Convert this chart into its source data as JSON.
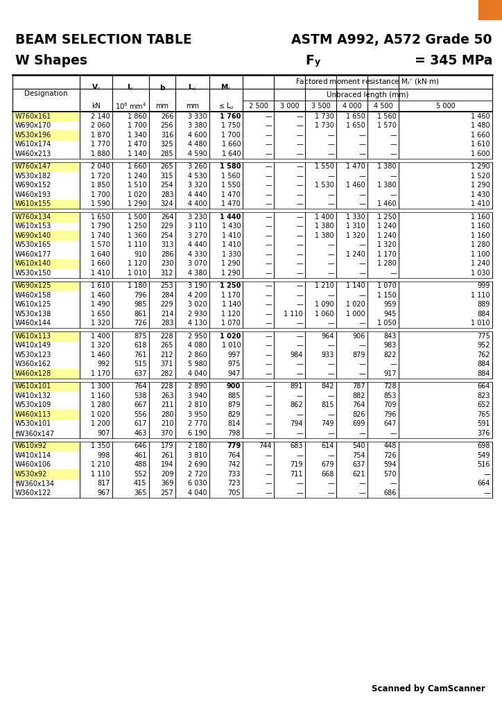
{
  "highlight_color": "#FFFF99",
  "background_color": "#FFFFFF",
  "groups": [
    {
      "rows": [
        [
          "W760x161",
          "2 140",
          "1 860",
          "266",
          "3 330",
          "1 760",
          "—",
          "—",
          "1 730",
          "1 650",
          "1 560",
          "1 460"
        ],
        [
          "W690x170",
          "2 060",
          "1 700",
          "256",
          "3 380",
          "1 750",
          "—",
          "—",
          "1 730",
          "1 650",
          "1 570",
          "1 480"
        ],
        [
          "W530x196",
          "1 870",
          "1 340",
          "316",
          "4 600",
          "1 700",
          "—",
          "—",
          "—",
          "—",
          "—",
          "1 660"
        ],
        [
          "W610x174",
          "1 770",
          "1 470",
          "325",
          "4 480",
          "1 660",
          "—",
          "—",
          "—",
          "—",
          "—",
          "1 610"
        ],
        [
          "W460x213",
          "1 880",
          "1 140",
          "285",
          "4 590",
          "1 640",
          "—",
          "—",
          "—",
          "—",
          "—",
          "1 600"
        ]
      ],
      "highlighted": [
        0,
        2
      ]
    },
    {
      "rows": [
        [
          "W760x147",
          "2 040",
          "1 660",
          "265",
          "3 260",
          "1 580",
          "—",
          "—",
          "1 550",
          "1 470",
          "1 380",
          "1 290"
        ],
        [
          "W530x182",
          "1 720",
          "1 240",
          "315",
          "4 530",
          "1 560",
          "—",
          "—",
          "—",
          "—",
          "—",
          "1 520"
        ],
        [
          "W690x152",
          "1 850",
          "1 510",
          "254",
          "3 320",
          "1 550",
          "—",
          "—",
          "1 530",
          "1 460",
          "1 380",
          "1 290"
        ],
        [
          "W460x193",
          "1 700",
          "1 020",
          "283",
          "4 440",
          "1 470",
          "—",
          "—",
          "—",
          "—",
          "—",
          "1 430"
        ],
        [
          "W610x155",
          "1 590",
          "1 290",
          "324",
          "4 400",
          "1 470",
          "—",
          "—",
          "—",
          "—",
          "1 460",
          "1 410"
        ]
      ],
      "highlighted": [
        0,
        4
      ]
    },
    {
      "rows": [
        [
          "W760x134",
          "1 650",
          "1 500",
          "264",
          "3 230",
          "1 440",
          "—",
          "—",
          "1 400",
          "1 330",
          "1 250",
          "1 160"
        ],
        [
          "W610x153",
          "1 790",
          "1 250",
          "229",
          "3 110",
          "1 430",
          "—",
          "—",
          "1 380",
          "1 310",
          "1 240",
          "1 160"
        ],
        [
          "W690x140",
          "1 740",
          "1 360",
          "254",
          "3 270",
          "1 410",
          "—",
          "—",
          "1 380",
          "1 320",
          "1 240",
          "1 160"
        ],
        [
          "W530x165",
          "1 570",
          "1 110",
          "313",
          "4 440",
          "1 410",
          "—",
          "—",
          "—",
          "—",
          "1 320",
          "1 280"
        ],
        [
          "W460x177",
          "1 640",
          "910",
          "286",
          "4 330",
          "1 330",
          "—",
          "—",
          "—",
          "1 240",
          "1 170",
          "1 100"
        ],
        [
          "W610x140",
          "1 660",
          "1 120",
          "230",
          "3 070",
          "1 290",
          "—",
          "—",
          "—",
          "—",
          "1 280",
          "1 240"
        ],
        [
          "W530x150",
          "1 410",
          "1 010",
          "312",
          "4 380",
          "1 290",
          "—",
          "—",
          "—",
          "—",
          "—",
          "1 030"
        ]
      ],
      "highlighted": [
        0,
        2,
        5
      ]
    },
    {
      "rows": [
        [
          "W690x125",
          "1 610",
          "1 180",
          "253",
          "3 190",
          "1 250",
          "—",
          "—",
          "1 210",
          "1 140",
          "1 070",
          "999"
        ],
        [
          "W460x158",
          "1 460",
          "796",
          "284",
          "4 200",
          "1 170",
          "—",
          "—",
          "—",
          "—",
          "1 150",
          "1 110"
        ],
        [
          "W610x125",
          "1 490",
          "985",
          "229",
          "3 020",
          "1 140",
          "—",
          "—",
          "1 090",
          "1 020",
          "959",
          "889"
        ],
        [
          "W530x138",
          "1 650",
          "861",
          "214",
          "2 930",
          "1 120",
          "—",
          "1 110",
          "1 060",
          "1 000",
          "945",
          "884"
        ],
        [
          "W460x144",
          "1 320",
          "726",
          "283",
          "4 130",
          "1 070",
          "—",
          "—",
          "—",
          "—",
          "1 050",
          "1 010"
        ]
      ],
      "highlighted": [
        0
      ]
    },
    {
      "rows": [
        [
          "W610x113",
          "1 400",
          "875",
          "228",
          "2 950",
          "1 020",
          "—",
          "—",
          "964",
          "906",
          "843",
          "775"
        ],
        [
          "W410x149",
          "1 320",
          "618",
          "265",
          "4 080",
          "1 010",
          "—",
          "—",
          "—",
          "—",
          "983",
          "952"
        ],
        [
          "W530x123",
          "1 460",
          "761",
          "212",
          "2 860",
          "997",
          "—",
          "984",
          "933",
          "879",
          "822",
          "762"
        ],
        [
          "W360x162",
          "992",
          "515",
          "371",
          "5 980",
          "975",
          "—",
          "—",
          "—",
          "—",
          "—",
          "884"
        ],
        [
          "W460x128",
          "1 170",
          "637",
          "282",
          "4 040",
          "947",
          "—",
          "—",
          "—",
          "—",
          "917",
          "884"
        ]
      ],
      "highlighted": [
        0,
        4
      ]
    },
    {
      "rows": [
        [
          "W610x101",
          "1 300",
          "764",
          "228",
          "2 890",
          "900",
          "—",
          "891",
          "842",
          "787",
          "728",
          "664"
        ],
        [
          "W410x132",
          "1 160",
          "538",
          "263",
          "3 940",
          "885",
          "—",
          "—",
          "—",
          "882",
          "853",
          "823"
        ],
        [
          "W530x109",
          "1 280",
          "667",
          "211",
          "2 810",
          "879",
          "—",
          "862",
          "815",
          "764",
          "709",
          "652"
        ],
        [
          "W460x113",
          "1 020",
          "556",
          "280",
          "3 950",
          "829",
          "—",
          "—",
          "—",
          "826",
          "796",
          "765"
        ],
        [
          "W530x101",
          "1 200",
          "617",
          "210",
          "2 770",
          "814",
          "—",
          "794",
          "749",
          "699",
          "647",
          "591"
        ],
        [
          "†W360x147",
          "907",
          "463",
          "370",
          "6 190",
          "798",
          "—",
          "—",
          "—",
          "—",
          "—",
          "376"
        ]
      ],
      "highlighted": [
        0,
        3
      ]
    },
    {
      "rows": [
        [
          "W610x92",
          "1 350",
          "646",
          "179",
          "2 180",
          "779",
          "744",
          "683",
          "614",
          "540",
          "448",
          "698"
        ],
        [
          "W410x114",
          "998",
          "461",
          "261",
          "3 810",
          "764",
          "—",
          "—",
          "—",
          "754",
          "726",
          "549"
        ],
        [
          "W460x106",
          "1 210",
          "488",
          "194",
          "2 690",
          "742",
          "—",
          "719",
          "679",
          "637",
          "594",
          "516"
        ],
        [
          "W530x92",
          "1 110",
          "552",
          "209",
          "2 720",
          "733",
          "—",
          "711",
          "668",
          "621",
          "570",
          "—"
        ],
        [
          "†W360x134",
          "817",
          "415",
          "369",
          "6 030",
          "723",
          "—",
          "—",
          "—",
          "—",
          "—",
          "664"
        ],
        [
          "W360x122",
          "967",
          "365",
          "257",
          "4 040",
          "705",
          "—",
          "—",
          "—",
          "—",
          "686",
          "—"
        ]
      ],
      "highlighted": [
        0,
        3
      ]
    }
  ]
}
